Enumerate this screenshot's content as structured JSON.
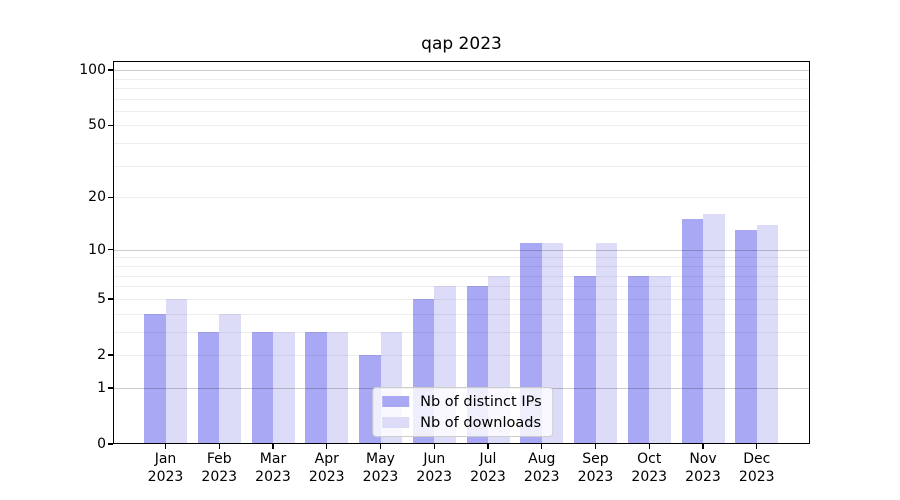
{
  "chart_data": {
    "type": "bar",
    "title": "qap 2023",
    "categories": [
      "Jan\n2023",
      "Feb\n2023",
      "Mar\n2023",
      "Apr\n2023",
      "May\n2023",
      "Jun\n2023",
      "Jul\n2023",
      "Aug\n2023",
      "Sep\n2023",
      "Oct\n2023",
      "Nov\n2023",
      "Dec\n2023"
    ],
    "series": [
      {
        "name": "Nb of distinct IPs",
        "color": "#a8a8f5",
        "values": [
          4,
          3,
          3,
          3,
          2,
          5,
          6,
          11,
          7,
          7,
          15,
          13
        ]
      },
      {
        "name": "Nb of downloads",
        "color": "#dcdcf9",
        "values": [
          5,
          4,
          3,
          3,
          3,
          6,
          7,
          11,
          11,
          7,
          16,
          14
        ]
      }
    ],
    "xlabel": "",
    "ylabel": "",
    "yscale": "log1p",
    "ylim": [
      0,
      112
    ],
    "yticks": [
      0,
      1,
      2,
      5,
      10,
      20,
      50,
      100
    ],
    "gridlines": {
      "major": [
        1,
        10,
        100
      ],
      "minor": [
        2,
        3,
        4,
        5,
        6,
        7,
        8,
        9,
        20,
        30,
        40,
        50,
        60,
        70,
        80,
        90
      ]
    },
    "grid": "on",
    "legend_position": "lower center"
  }
}
